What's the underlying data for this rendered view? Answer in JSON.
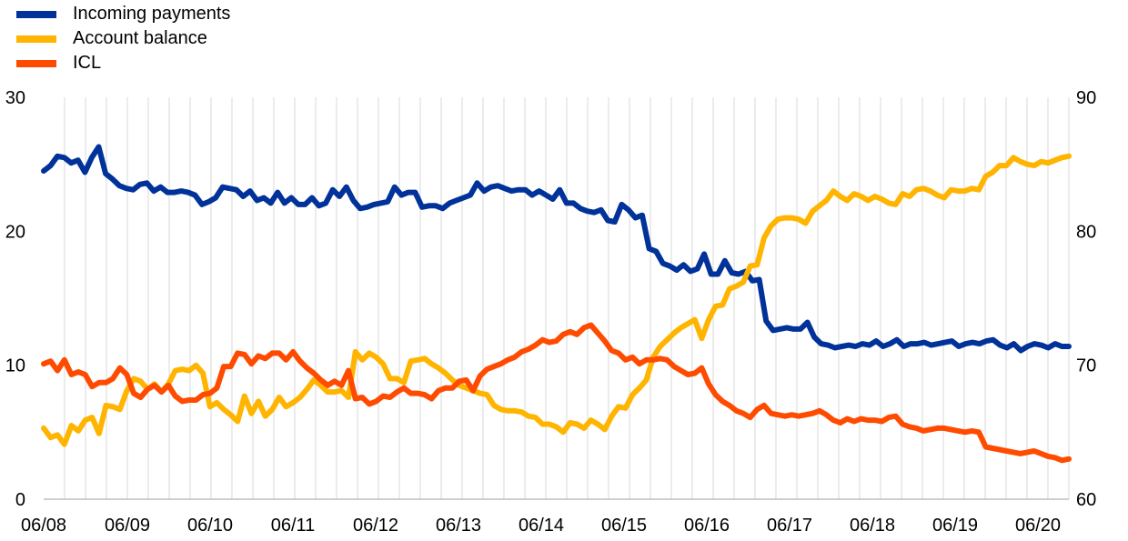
{
  "chart_data": {
    "type": "line",
    "title": "",
    "xlabel": "",
    "ylabel": "",
    "ylabel_right": "",
    "grid": "vertical",
    "legend_position": "top-left",
    "x_tick_labels": [
      "06/08",
      "06/09",
      "06/10",
      "06/11",
      "06/12",
      "06/13",
      "06/14",
      "06/15",
      "06/16",
      "06/17",
      "06/18",
      "06/19",
      "06/20"
    ],
    "x_range": [
      "06/08",
      "end 2020"
    ],
    "left_axis": {
      "ylim": [
        0,
        30
      ],
      "ticks": [
        "0",
        "10",
        "20",
        "30"
      ]
    },
    "right_axis": {
      "ylim": [
        60,
        90
      ],
      "ticks": [
        "60",
        "70",
        "80",
        "90"
      ]
    },
    "series": [
      {
        "name": "Incoming payments",
        "color": "#003299",
        "axis": "left",
        "values": [
          24.5,
          24.9,
          25.6,
          25.5,
          25.1,
          25.3,
          24.4,
          25.5,
          26.3,
          24.3,
          23.9,
          23.4,
          23.2,
          23.1,
          23.5,
          23.6,
          23.0,
          23.3,
          22.9,
          22.9,
          23.0,
          22.9,
          22.7,
          22.0,
          22.2,
          22.5,
          23.3,
          23.2,
          23.1,
          22.6,
          23.0,
          22.3,
          22.5,
          22.1,
          22.9,
          22.1,
          22.5,
          22.0,
          22.0,
          22.5,
          21.9,
          22.1,
          23.1,
          22.6,
          23.3,
          22.3,
          21.7,
          21.8,
          22.0,
          22.1,
          22.2,
          23.3,
          22.7,
          22.9,
          22.9,
          21.8,
          21.9,
          21.9,
          21.7,
          22.1,
          22.3,
          22.5,
          22.7,
          23.6,
          23.0,
          23.3,
          23.4,
          23.2,
          23.0,
          23.1,
          23.1,
          22.7,
          23.0,
          22.7,
          22.4,
          23.1,
          22.1,
          22.1,
          21.7,
          21.5,
          21.4,
          21.6,
          20.8,
          20.7,
          22.0,
          21.6,
          21.0,
          21.2,
          18.7,
          18.5,
          17.6,
          17.4,
          17.1,
          17.5,
          17.0,
          17.2,
          18.3,
          16.8,
          16.8,
          17.8,
          16.9,
          16.8,
          17.0,
          16.3,
          16.4,
          13.3,
          12.6,
          12.7,
          12.8,
          12.7,
          12.7,
          13.2,
          12.1,
          11.6,
          11.5,
          11.3,
          11.4,
          11.5,
          11.4,
          11.6,
          11.5,
          11.8,
          11.4,
          11.6,
          11.9,
          11.4,
          11.6,
          11.6,
          11.7,
          11.5,
          11.6,
          11.7,
          11.8,
          11.4,
          11.6,
          11.7,
          11.6,
          11.8,
          11.9,
          11.5,
          11.3,
          11.6,
          11.1,
          11.4,
          11.6,
          11.5,
          11.3,
          11.6,
          11.4,
          11.4
        ]
      },
      {
        "name": "Account balance",
        "color": "#ffb400",
        "axis": "right",
        "values": [
          65.3,
          64.6,
          64.8,
          64.1,
          65.5,
          65.1,
          65.9,
          66.1,
          64.9,
          67.0,
          66.9,
          66.7,
          68.1,
          69.0,
          68.8,
          68.2,
          68.6,
          68.0,
          68.6,
          69.6,
          69.7,
          69.6,
          70.0,
          69.4,
          66.9,
          67.2,
          66.7,
          66.3,
          65.8,
          67.7,
          66.4,
          67.3,
          66.2,
          66.7,
          67.6,
          66.9,
          67.2,
          67.6,
          68.2,
          68.9,
          68.5,
          68.0,
          68.0,
          68.1,
          67.6,
          71.0,
          70.4,
          70.9,
          70.6,
          70.1,
          69.0,
          69.0,
          68.7,
          70.3,
          70.4,
          70.5,
          70.1,
          69.8,
          69.4,
          68.9,
          68.5,
          68.3,
          68.1,
          67.9,
          67.8,
          67.0,
          66.7,
          66.6,
          66.6,
          66.5,
          66.2,
          66.1,
          65.6,
          65.6,
          65.4,
          65.0,
          65.7,
          65.6,
          65.3,
          65.9,
          65.6,
          65.2,
          66.2,
          66.9,
          66.8,
          67.8,
          68.3,
          68.9,
          70.6,
          71.4,
          71.9,
          72.4,
          72.8,
          73.1,
          73.4,
          72.0,
          73.4,
          74.4,
          74.5,
          75.7,
          75.9,
          76.2,
          77.4,
          77.5,
          79.5,
          80.4,
          80.9,
          81.0,
          81.0,
          80.9,
          80.6,
          81.5,
          81.9,
          82.3,
          83.0,
          82.6,
          82.3,
          82.8,
          82.6,
          82.3,
          82.6,
          82.4,
          82.1,
          82.0,
          82.8,
          82.6,
          83.1,
          83.2,
          83.0,
          82.7,
          82.5,
          83.1,
          83.0,
          83.0,
          83.2,
          83.1,
          84.1,
          84.4,
          84.9,
          84.9,
          85.5,
          85.2,
          85.0,
          84.9,
          85.2,
          85.1,
          85.3,
          85.5,
          85.6
        ]
      },
      {
        "name": "ICL",
        "color": "#ff4b00",
        "axis": "left",
        "values": [
          10.1,
          10.3,
          9.6,
          10.4,
          9.3,
          9.5,
          9.3,
          8.4,
          8.7,
          8.7,
          9.0,
          9.8,
          9.3,
          7.9,
          7.6,
          8.2,
          8.5,
          8.0,
          8.5,
          7.7,
          7.3,
          7.4,
          7.4,
          7.8,
          7.9,
          8.3,
          9.9,
          9.9,
          10.9,
          10.8,
          10.1,
          10.7,
          10.5,
          10.9,
          10.9,
          10.4,
          11.0,
          10.3,
          9.8,
          9.4,
          8.9,
          8.5,
          8.8,
          8.5,
          9.6,
          7.5,
          7.6,
          7.1,
          7.3,
          7.7,
          7.6,
          8.0,
          8.3,
          7.9,
          7.9,
          7.8,
          7.5,
          8.1,
          8.3,
          8.3,
          8.8,
          8.9,
          8.1,
          9.2,
          9.7,
          9.9,
          10.1,
          10.4,
          10.6,
          11.0,
          11.2,
          11.5,
          11.9,
          11.7,
          11.8,
          12.3,
          12.5,
          12.3,
          12.8,
          13.0,
          12.4,
          11.8,
          11.1,
          10.9,
          10.4,
          10.6,
          10.1,
          10.4,
          10.4,
          10.5,
          10.4,
          9.9,
          9.6,
          9.3,
          9.4,
          9.8,
          8.6,
          7.8,
          7.3,
          7.0,
          6.6,
          6.4,
          6.1,
          6.7,
          7.0,
          6.4,
          6.3,
          6.2,
          6.3,
          6.2,
          6.3,
          6.4,
          6.6,
          6.3,
          5.9,
          5.7,
          6.0,
          5.8,
          6.0,
          5.9,
          5.9,
          5.8,
          6.1,
          6.2,
          5.6,
          5.4,
          5.3,
          5.1,
          5.2,
          5.3,
          5.3,
          5.2,
          5.1,
          5.0,
          5.1,
          5.0,
          3.9,
          3.8,
          3.7,
          3.6,
          3.5,
          3.4,
          3.5,
          3.6,
          3.4,
          3.2,
          3.1,
          2.9,
          3.0
        ]
      }
    ]
  }
}
